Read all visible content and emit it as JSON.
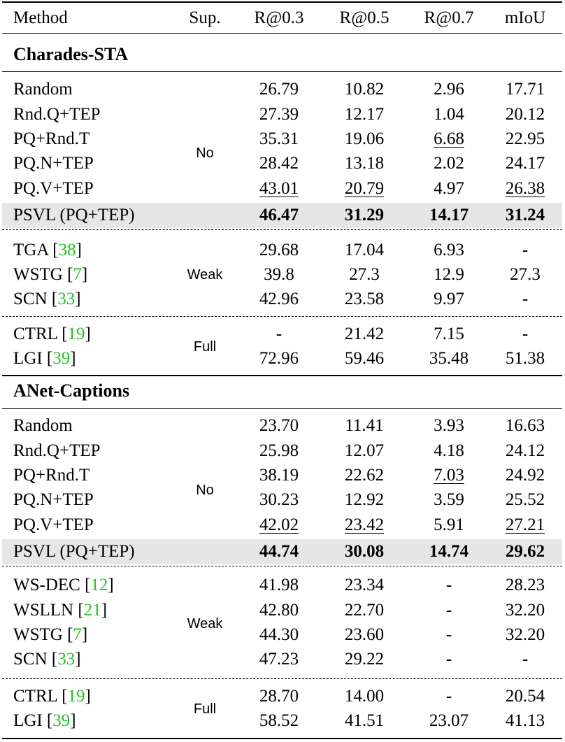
{
  "header": [
    "Method",
    "Sup.",
    "R@0.3",
    "R@0.5",
    "R@0.7",
    "mIoU"
  ],
  "sections": [
    {
      "title": "Charades-STA",
      "groups": [
        {
          "sup": "No",
          "rows": [
            {
              "method": "Random",
              "cite": "",
              "v": [
                "26.79",
                "10.82",
                "2.96",
                "17.71"
              ]
            },
            {
              "method": "Rnd.Q+TEP",
              "cite": "",
              "v": [
                "27.39",
                "12.17",
                "1.04",
                "20.12"
              ]
            },
            {
              "method": "PQ+Rnd.T",
              "cite": "",
              "v": [
                "35.31",
                "19.06",
                "6.68",
                "22.95"
              ]
            },
            {
              "method": "PQ.N+TEP",
              "cite": "",
              "v": [
                "28.42",
                "13.18",
                "2.02",
                "24.17"
              ]
            },
            {
              "method": "PQ.V+TEP",
              "cite": "",
              "v": [
                "43.01",
                "20.79",
                "4.97",
                "26.38"
              ]
            },
            {
              "method": "PSVL (PQ+TEP)",
              "cite": "",
              "v": [
                "46.47",
                "31.29",
                "14.17",
                "31.24"
              ]
            }
          ]
        },
        {
          "sup": "Weak",
          "rows": [
            {
              "method": "TGA ",
              "cite": "38",
              "v": [
                "29.68",
                "17.04",
                "6.93",
                "-"
              ]
            },
            {
              "method": "WSTG ",
              "cite": "7",
              "v": [
                "39.8",
                "27.3",
                "12.9",
                "27.3"
              ]
            },
            {
              "method": "SCN ",
              "cite": "33",
              "v": [
                "42.96",
                "23.58",
                "9.97",
                "-"
              ]
            }
          ]
        },
        {
          "sup": "Full",
          "rows": [
            {
              "method": "CTRL ",
              "cite": "19",
              "v": [
                "-",
                "21.42",
                "7.15",
                "-"
              ]
            },
            {
              "method": "LGI ",
              "cite": "39",
              "v": [
                "72.96",
                "59.46",
                "35.48",
                "51.38"
              ]
            }
          ]
        }
      ]
    },
    {
      "title": "ANet-Captions",
      "groups": [
        {
          "sup": "No",
          "rows": [
            {
              "method": "Random",
              "cite": "",
              "v": [
                "23.70",
                "11.41",
                "3.93",
                "16.63"
              ]
            },
            {
              "method": "Rnd.Q+TEP",
              "cite": "",
              "v": [
                "25.98",
                "12.07",
                "4.18",
                "24.12"
              ]
            },
            {
              "method": "PQ+Rnd.T",
              "cite": "",
              "v": [
                "38.19",
                "22.62",
                "7.03",
                "24.92"
              ]
            },
            {
              "method": "PQ.N+TEP",
              "cite": "",
              "v": [
                "30.23",
                "12.92",
                "3.59",
                "25.52"
              ]
            },
            {
              "method": "PQ.V+TEP",
              "cite": "",
              "v": [
                "42.02",
                "23.42",
                "5.91",
                "27.21"
              ]
            },
            {
              "method": "PSVL (PQ+TEP)",
              "cite": "",
              "v": [
                "44.74",
                "30.08",
                "14.74",
                "29.62"
              ]
            }
          ]
        },
        {
          "sup": "Weak",
          "rows": [
            {
              "method": "WS-DEC ",
              "cite": "12",
              "v": [
                "41.98",
                "23.34",
                "-",
                "28.23"
              ]
            },
            {
              "method": "WSLLN ",
              "cite": "21",
              "v": [
                "42.80",
                "22.70",
                "-",
                "32.20"
              ]
            },
            {
              "method": "WSTG ",
              "cite": "7",
              "v": [
                "44.30",
                "23.60",
                "-",
                "32.20"
              ]
            },
            {
              "method": "SCN ",
              "cite": "33",
              "v": [
                "47.23",
                "29.22",
                "-",
                "-"
              ]
            }
          ]
        },
        {
          "sup": "Full",
          "rows": [
            {
              "method": "CTRL ",
              "cite": "19",
              "v": [
                "28.70",
                "14.00",
                "-",
                "20.54"
              ]
            },
            {
              "method": "LGI ",
              "cite": "39",
              "v": [
                "58.52",
                "41.51",
                "23.07",
                "41.13"
              ]
            }
          ]
        }
      ]
    }
  ]
}
